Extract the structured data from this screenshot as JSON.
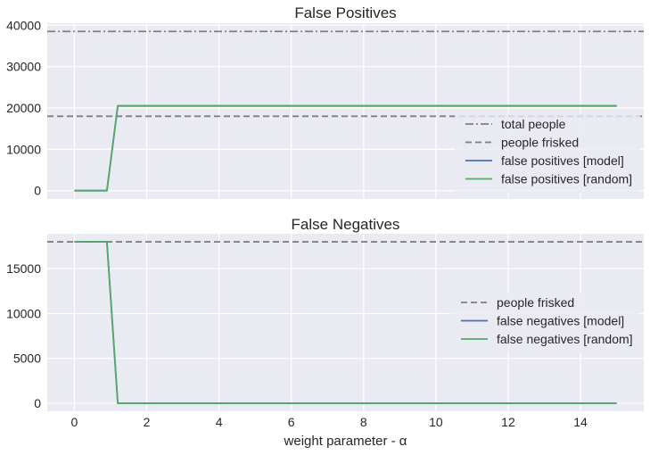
{
  "colors": {
    "background": "#eaeaf2",
    "grid": "#ffffff",
    "reference": "#808080",
    "model": "#4c72b0",
    "random": "#55a868"
  },
  "chart_data": [
    {
      "type": "line",
      "title": "False Positives",
      "xlabel": "",
      "ylabel": "",
      "xlim": [
        -0.75,
        15.75
      ],
      "ylim": [
        -2000,
        40500
      ],
      "yticks": [
        0,
        10000,
        20000,
        30000,
        40000
      ],
      "ytick_labels": [
        "0",
        "10000",
        "20000",
        "30000",
        "40000"
      ],
      "grid": true,
      "legend_position": "right",
      "reference_lines": [
        {
          "name": "total people",
          "value": 38500,
          "style": "dashdot"
        },
        {
          "name": "people frisked",
          "value": 18000,
          "style": "dashed"
        }
      ],
      "series": [
        {
          "name": "false positives [model]",
          "x": [
            0,
            0.9,
            1.2,
            15
          ],
          "y": [
            0,
            0,
            20500,
            20500
          ]
        },
        {
          "name": "false positives [random]",
          "x": [
            0,
            0.9,
            1.2,
            15
          ],
          "y": [
            0,
            0,
            20500,
            20500
          ]
        }
      ],
      "legend": [
        "total people",
        "people frisked",
        "false positives [model]",
        "false positives [random]"
      ]
    },
    {
      "type": "line",
      "title": "False Negatives",
      "xlabel": "weight parameter - α",
      "ylabel": "",
      "xlim": [
        -0.75,
        15.75
      ],
      "ylim": [
        -900,
        18900
      ],
      "xticks": [
        0,
        2,
        4,
        6,
        8,
        10,
        12,
        14
      ],
      "xtick_labels": [
        "0",
        "2",
        "4",
        "6",
        "8",
        "10",
        "12",
        "14"
      ],
      "yticks": [
        0,
        5000,
        10000,
        15000
      ],
      "ytick_labels": [
        "0",
        "5000",
        "10000",
        "15000"
      ],
      "grid": true,
      "legend_position": "right",
      "reference_lines": [
        {
          "name": "people frisked",
          "value": 18000,
          "style": "dashed"
        }
      ],
      "series": [
        {
          "name": "false negatives [model]",
          "x": [
            0,
            0.9,
            1.2,
            15
          ],
          "y": [
            18000,
            18000,
            0,
            0
          ]
        },
        {
          "name": "false negatives [random]",
          "x": [
            0,
            0.9,
            1.2,
            15
          ],
          "y": [
            18000,
            18000,
            0,
            0
          ]
        }
      ],
      "legend": [
        "people frisked",
        "false negatives [model]",
        "false negatives [random]"
      ]
    }
  ]
}
